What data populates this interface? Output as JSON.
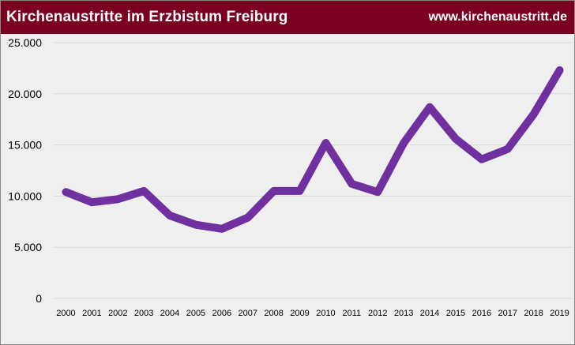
{
  "header": {
    "title": "Kirchenaustritte im Erzbistum Freiburg",
    "site": "www.kirchenaustritt.de"
  },
  "colors": {
    "header_bg": "#7b0020",
    "line": "#7030a0",
    "grid": "#d9d9d9",
    "plot_bg": "#f0efef"
  },
  "chart_data": {
    "type": "line",
    "title": "Kirchenaustritte im Erzbistum Freiburg",
    "xlabel": "",
    "ylabel": "",
    "categories": [
      "2000",
      "2001",
      "2002",
      "2003",
      "2004",
      "2005",
      "2006",
      "2007",
      "2008",
      "2009",
      "2010",
      "2011",
      "2012",
      "2013",
      "2014",
      "2015",
      "2016",
      "2017",
      "2018",
      "2019"
    ],
    "series": [
      {
        "values": [
          10400,
          9400,
          9700,
          10500,
          8100,
          7200,
          6800,
          7900,
          10500,
          10500,
          15200,
          11200,
          10400,
          15200,
          18700,
          15600,
          13600,
          14600,
          18000,
          22300
        ]
      }
    ],
    "ylim": [
      0,
      25000
    ],
    "yticks": [
      0,
      5000,
      10000,
      15000,
      20000,
      25000
    ],
    "ytick_labels": [
      "0",
      "5.000",
      "10.000",
      "15.000",
      "20.000",
      "25.000"
    ],
    "grid": true,
    "legend": "none"
  }
}
